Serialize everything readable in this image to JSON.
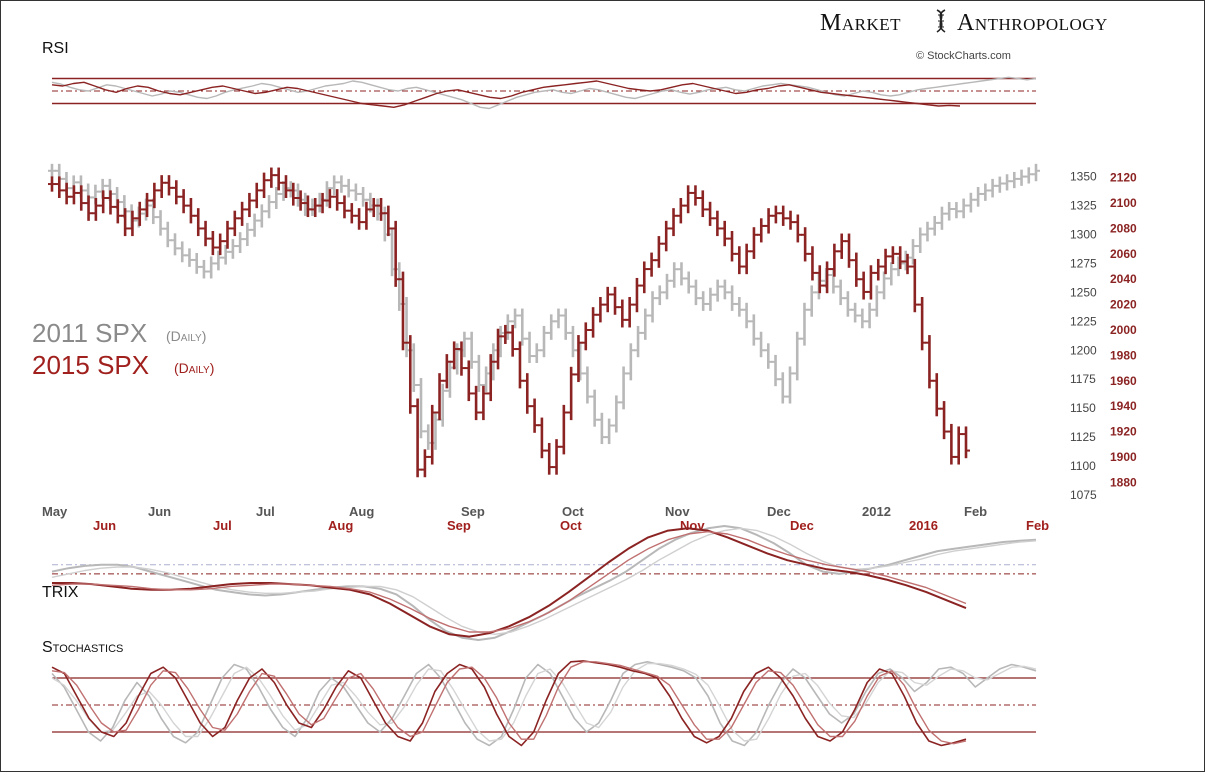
{
  "brand": {
    "left": "Market",
    "right": "Anthropology",
    "credit": "© StockCharts.com"
  },
  "colors": {
    "s2011": "#b8b8b8",
    "s2015": "#8b2323",
    "s2011_dark": "#9a9a9a",
    "fill_2015": "#a9474a"
  },
  "icon": "dna-helix-icon",
  "chart_data": [
    {
      "panel": "rsi",
      "type": "line",
      "title": "RSI",
      "ylim": [
        10,
        90
      ],
      "reference_lines": [
        70,
        50,
        30
      ],
      "series": [
        {
          "name": "2011 SPX (Daily)",
          "values": [
            64,
            61,
            56,
            52,
            50,
            55,
            60,
            58,
            54,
            50,
            46,
            42,
            45,
            50,
            48,
            44,
            40,
            38,
            42,
            48,
            52,
            55,
            58,
            62,
            60,
            56,
            52,
            48,
            50,
            54,
            58,
            60,
            62,
            66,
            64,
            60,
            56,
            52,
            50,
            54,
            56,
            52,
            48,
            44,
            40,
            36,
            30,
            24,
            22,
            28,
            34,
            40,
            44,
            48,
            50,
            52,
            48,
            46,
            50,
            54,
            52,
            48,
            44,
            40,
            38,
            42,
            46,
            50,
            52,
            48,
            45,
            48,
            52,
            54,
            56,
            52,
            50,
            54,
            58,
            60,
            62,
            60,
            58,
            56,
            52,
            48,
            44,
            42,
            46,
            50,
            48,
            44,
            42,
            44,
            48,
            52,
            54,
            56,
            58,
            60,
            62,
            64,
            66,
            68,
            70,
            72,
            70,
            68,
            70
          ]
        },
        {
          "name": "2015 SPX (Daily)",
          "values": [
            60,
            58,
            62,
            64,
            58,
            52,
            48,
            54,
            58,
            56,
            50,
            46,
            44,
            48,
            52,
            56,
            58,
            54,
            50,
            46,
            48,
            52,
            56,
            54,
            50,
            46,
            42,
            38,
            34,
            30,
            28,
            26,
            24,
            28,
            34,
            40,
            46,
            50,
            52,
            48,
            44,
            40,
            38,
            42,
            48,
            52,
            56,
            58,
            60,
            62,
            64,
            66,
            62,
            58,
            54,
            52,
            50,
            52,
            56,
            60,
            62,
            58,
            54,
            50,
            46,
            48,
            52,
            54,
            58,
            60,
            56,
            52,
            48,
            46,
            44,
            42,
            40,
            38,
            36,
            34,
            32,
            30,
            28,
            26,
            27,
            26
          ]
        }
      ]
    },
    {
      "panel": "price",
      "type": "bar",
      "legend": [
        {
          "label": "2011 SPX",
          "sublabel": "(Daily)"
        },
        {
          "label": "2015 SPX",
          "sublabel": "(Daily)"
        }
      ],
      "y_ticks_2011": [
        "1350",
        "1325",
        "1300",
        "1275",
        "1250",
        "1225",
        "1200",
        "1175",
        "1150",
        "1125",
        "1100",
        "1075"
      ],
      "y_ticks_2015": [
        "2120",
        "2100",
        "2080",
        "2060",
        "2040",
        "2020",
        "2000",
        "1980",
        "1960",
        "1940",
        "1920",
        "1900",
        "1880"
      ],
      "months_2011": [
        "May",
        "Jun",
        "Jul",
        "Aug",
        "Sep",
        "Oct",
        "Nov",
        "Dec",
        "2012",
        "Feb"
      ],
      "months_2015": [
        "Jun",
        "Jul",
        "Aug",
        "Sep",
        "Oct",
        "Nov",
        "Dec",
        "2016",
        "Feb"
      ],
      "ylim_2011": [
        1075,
        1360
      ],
      "ylim_2015": [
        1870,
        2130
      ],
      "series": [
        {
          "name": "2011 SPX",
          "closes": [
            1355,
            1348,
            1340,
            1345,
            1338,
            1332,
            1337,
            1342,
            1335,
            1328,
            1320,
            1312,
            1318,
            1325,
            1315,
            1305,
            1295,
            1288,
            1282,
            1278,
            1272,
            1268,
            1275,
            1280,
            1285,
            1290,
            1296,
            1304,
            1312,
            1320,
            1328,
            1335,
            1340,
            1338,
            1330,
            1322,
            1325,
            1330,
            1340,
            1345,
            1342,
            1338,
            1335,
            1330,
            1325,
            1318,
            1300,
            1270,
            1240,
            1200,
            1170,
            1130,
            1120,
            1140,
            1165,
            1185,
            1200,
            1210,
            1190,
            1170,
            1180,
            1200,
            1215,
            1225,
            1230,
            1210,
            1195,
            1200,
            1215,
            1225,
            1230,
            1215,
            1200,
            1180,
            1160,
            1140,
            1125,
            1135,
            1155,
            1180,
            1200,
            1215,
            1230,
            1245,
            1250,
            1260,
            1270,
            1262,
            1255,
            1245,
            1240,
            1248,
            1255,
            1250,
            1240,
            1235,
            1225,
            1210,
            1200,
            1190,
            1175,
            1160,
            1180,
            1210,
            1235,
            1250,
            1260,
            1265,
            1255,
            1245,
            1235,
            1230,
            1225,
            1235,
            1250,
            1262,
            1270,
            1275,
            1280,
            1290,
            1300,
            1305,
            1310,
            1318,
            1322,
            1320,
            1325,
            1330,
            1335,
            1338,
            1342,
            1344,
            1346,
            1348,
            1350,
            1352,
            1355
          ]
        },
        {
          "name": "2015 SPX",
          "closes": [
            2115,
            2110,
            2105,
            2108,
            2100,
            2092,
            2098,
            2104,
            2097,
            2090,
            2080,
            2088,
            2095,
            2102,
            2110,
            2116,
            2112,
            2105,
            2098,
            2090,
            2080,
            2072,
            2065,
            2070,
            2080,
            2088,
            2095,
            2102,
            2110,
            2118,
            2122,
            2116,
            2110,
            2104,
            2100,
            2095,
            2098,
            2102,
            2105,
            2100,
            2094,
            2090,
            2085,
            2095,
            2098,
            2092,
            2080,
            2040,
            1990,
            1940,
            1890,
            1900,
            1935,
            1960,
            1975,
            1985,
            1970,
            1950,
            1935,
            1950,
            1975,
            1995,
            1998,
            1985,
            1960,
            1940,
            1925,
            1905,
            1892,
            1908,
            1935,
            1965,
            1990,
            2000,
            2012,
            2020,
            2028,
            2018,
            2008,
            2020,
            2035,
            2048,
            2055,
            2068,
            2080,
            2090,
            2098,
            2108,
            2104,
            2095,
            2088,
            2080,
            2072,
            2060,
            2050,
            2062,
            2075,
            2082,
            2090,
            2092,
            2088,
            2085,
            2075,
            2060,
            2045,
            2035,
            2048,
            2062,
            2070,
            2055,
            2040,
            2030,
            2045,
            2050,
            2058,
            2060,
            2054,
            2050,
            2020,
            1990,
            1960,
            1938,
            1920,
            1900,
            1918,
            1905
          ]
        }
      ]
    },
    {
      "panel": "trix",
      "type": "line",
      "title": "TRIX",
      "reference_lines": [
        0.25,
        0.5,
        0.75
      ],
      "series": [
        {
          "name": "2011 SPX TRIX",
          "values": [
            0.6,
            0.63,
            0.65,
            0.66,
            0.66,
            0.64,
            0.6,
            0.56,
            0.52,
            0.48,
            0.44,
            0.42,
            0.4,
            0.39,
            0.4,
            0.42,
            0.44,
            0.46,
            0.47,
            0.47,
            0.45,
            0.4,
            0.3,
            0.18,
            0.08,
            0.02,
            0.0,
            0.02,
            0.08,
            0.15,
            0.22,
            0.3,
            0.38,
            0.45,
            0.52,
            0.6,
            0.7,
            0.8,
            0.88,
            0.94,
            0.98,
            1.0,
            0.98,
            0.92,
            0.85,
            0.76,
            0.66,
            0.6,
            0.58,
            0.6,
            0.63,
            0.66,
            0.7,
            0.74,
            0.78,
            0.8,
            0.82,
            0.84,
            0.86,
            0.87,
            0.88
          ]
        },
        {
          "name": "2011 SPX signal",
          "values": [
            0.55,
            0.58,
            0.61,
            0.63,
            0.64,
            0.64,
            0.62,
            0.59,
            0.55,
            0.51,
            0.47,
            0.44,
            0.42,
            0.41,
            0.41,
            0.42,
            0.43,
            0.45,
            0.46,
            0.47,
            0.47,
            0.44,
            0.38,
            0.29,
            0.2,
            0.12,
            0.07,
            0.05,
            0.07,
            0.12,
            0.18,
            0.25,
            0.32,
            0.39,
            0.46,
            0.53,
            0.61,
            0.7,
            0.78,
            0.86,
            0.92,
            0.96,
            0.98,
            0.96,
            0.91,
            0.84,
            0.76,
            0.69,
            0.64,
            0.62,
            0.63,
            0.65,
            0.68,
            0.71,
            0.75,
            0.78,
            0.8,
            0.82,
            0.84,
            0.86,
            0.87
          ]
        },
        {
          "name": "2015 SPX TRIX",
          "values": [
            0.5,
            0.5,
            0.49,
            0.47,
            0.45,
            0.44,
            0.44,
            0.45,
            0.47,
            0.49,
            0.5,
            0.5,
            0.49,
            0.48,
            0.46,
            0.44,
            0.4,
            0.32,
            0.22,
            0.12,
            0.05,
            0.03,
            0.06,
            0.12,
            0.2,
            0.3,
            0.42,
            0.55,
            0.68,
            0.8,
            0.9,
            0.96,
            0.98,
            0.96,
            0.9,
            0.83,
            0.76,
            0.7,
            0.66,
            0.62,
            0.6,
            0.57,
            0.53,
            0.48,
            0.42,
            0.35,
            0.28
          ]
        },
        {
          "name": "2015 SPX signal",
          "values": [
            0.48,
            0.49,
            0.49,
            0.48,
            0.47,
            0.45,
            0.44,
            0.44,
            0.45,
            0.47,
            0.48,
            0.49,
            0.49,
            0.48,
            0.47,
            0.45,
            0.42,
            0.36,
            0.28,
            0.19,
            0.12,
            0.07,
            0.07,
            0.1,
            0.16,
            0.24,
            0.34,
            0.46,
            0.58,
            0.7,
            0.8,
            0.88,
            0.93,
            0.95,
            0.93,
            0.88,
            0.81,
            0.75,
            0.7,
            0.66,
            0.63,
            0.6,
            0.56,
            0.51,
            0.46,
            0.39,
            0.32
          ]
        }
      ]
    },
    {
      "panel": "stochastics",
      "type": "line",
      "title": "Stochastics",
      "ylim": [
        0,
        100
      ],
      "reference_lines": [
        80,
        50,
        20
      ],
      "series": [
        {
          "name": "2011 SPX %K",
          "values": [
            85,
            70,
            45,
            20,
            10,
            25,
            55,
            75,
            60,
            35,
            15,
            8,
            20,
            50,
            80,
            95,
            90,
            70,
            45,
            25,
            15,
            35,
            65,
            80,
            70,
            50,
            30,
            20,
            35,
            60,
            85,
            95,
            80,
            55,
            30,
            12,
            5,
            15,
            45,
            80,
            95,
            85,
            60,
            35,
            20,
            30,
            55,
            85,
            95,
            98,
            95,
            92,
            88,
            80,
            60,
            30,
            10,
            5,
            20,
            50,
            75,
            90,
            80,
            60,
            40,
            30,
            40,
            65,
            85,
            90,
            80,
            65,
            75,
            90,
            92,
            85,
            70,
            80,
            90,
            95,
            92,
            88
          ]
        },
        {
          "name": "2011 SPX %D",
          "values": [
            80,
            72,
            55,
            35,
            20,
            22,
            40,
            60,
            65,
            50,
            30,
            15,
            15,
            35,
            60,
            85,
            92,
            80,
            60,
            38,
            22,
            28,
            50,
            72,
            75,
            60,
            42,
            28,
            30,
            48,
            72,
            90,
            88,
            68,
            45,
            22,
            10,
            12,
            30,
            60,
            85,
            90,
            75,
            52,
            30,
            25,
            42,
            70,
            88,
            96,
            96,
            94,
            90,
            84,
            72,
            48,
            22,
            10,
            12,
            35,
            62,
            82,
            85,
            72,
            52,
            38,
            36,
            52,
            75,
            88,
            86,
            75,
            72,
            82,
            90,
            88,
            80,
            78,
            85,
            92,
            93,
            90
          ]
        },
        {
          "name": "2015 SPX %K",
          "values": [
            92,
            85,
            60,
            35,
            20,
            15,
            30,
            60,
            85,
            92,
            80,
            55,
            30,
            15,
            25,
            55,
            80,
            90,
            75,
            50,
            30,
            25,
            45,
            70,
            88,
            80,
            55,
            30,
            15,
            10,
            30,
            65,
            85,
            95,
            90,
            70,
            40,
            15,
            5,
            20,
            55,
            85,
            98,
            99,
            97,
            95,
            92,
            88,
            85,
            80,
            60,
            35,
            15,
            8,
            15,
            35,
            65,
            85,
            92,
            80,
            60,
            35,
            15,
            10,
            20,
            45,
            75,
            90,
            85,
            60,
            30,
            10,
            5,
            8,
            12
          ]
        },
        {
          "name": "2015 SPX %D",
          "values": [
            88,
            86,
            72,
            50,
            30,
            20,
            22,
            45,
            72,
            88,
            86,
            68,
            45,
            25,
            22,
            40,
            65,
            85,
            82,
            62,
            40,
            28,
            35,
            58,
            80,
            85,
            68,
            45,
            25,
            15,
            20,
            48,
            75,
            90,
            92,
            80,
            58,
            30,
            12,
            12,
            38,
            70,
            92,
            98,
            98,
            96,
            94,
            90,
            86,
            82,
            72,
            50,
            28,
            12,
            12,
            25,
            50,
            75,
            88,
            86,
            72,
            50,
            28,
            15,
            15,
            32,
            60,
            82,
            88,
            72,
            45,
            22,
            10,
            7,
            10
          ]
        }
      ]
    }
  ]
}
